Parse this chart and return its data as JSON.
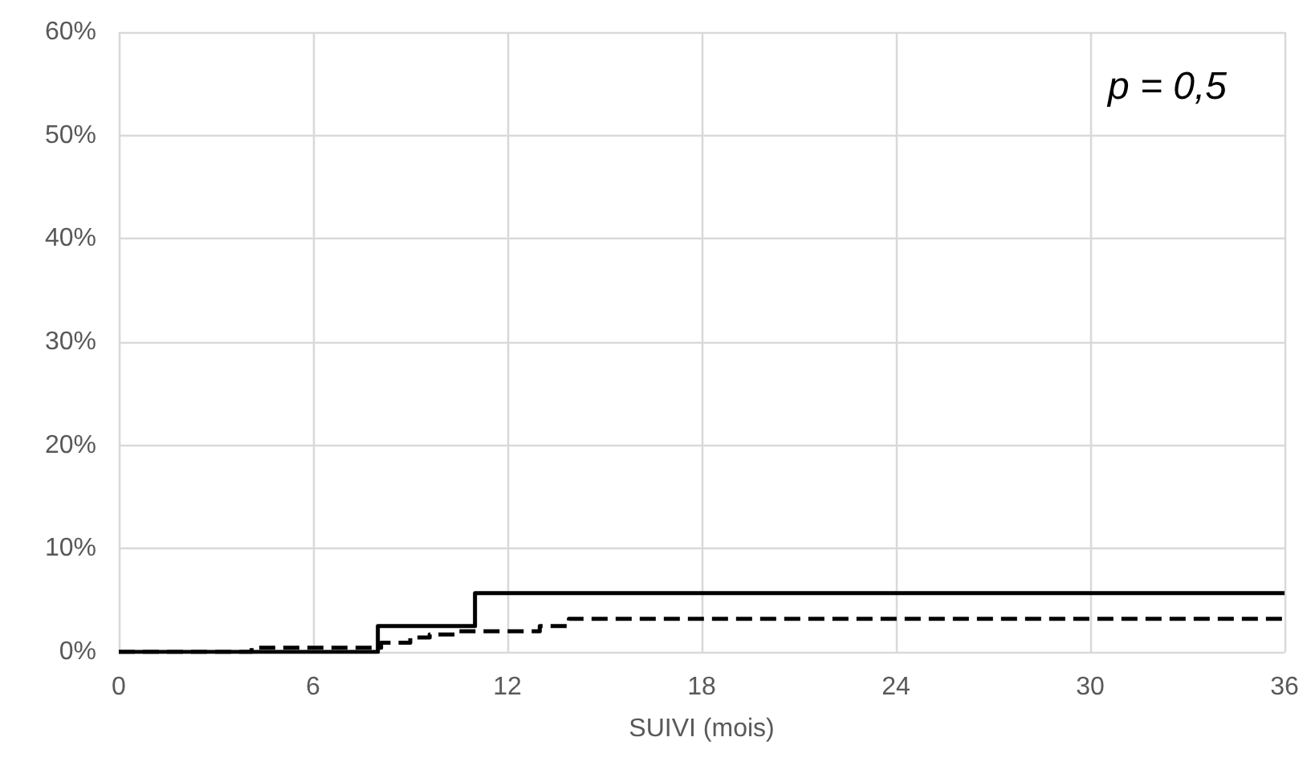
{
  "chart_data": {
    "type": "step",
    "xlabel": "SUIVI (mois)",
    "annotations": [
      "p = 0,5"
    ],
    "xlim": [
      0,
      36
    ],
    "xticks": [
      0,
      6,
      12,
      18,
      24,
      30,
      36
    ],
    "ylim": [
      0,
      60
    ],
    "yticks": [
      {
        "value": 0,
        "label": "0%"
      },
      {
        "value": 10,
        "label": "10%"
      },
      {
        "value": 20,
        "label": "20%"
      },
      {
        "value": 30,
        "label": "30%"
      },
      {
        "value": 40,
        "label": "40%"
      },
      {
        "value": 50,
        "label": "50%"
      },
      {
        "value": 60,
        "label": "60%"
      }
    ],
    "grid": true,
    "marker": "none",
    "series": [
      {
        "color": "#000000",
        "line_style": "solid",
        "x": [
          0,
          8,
          11,
          36
        ],
        "values": [
          0,
          2.5,
          5.7,
          5.7
        ]
      },
      {
        "color": "#000000",
        "line_style": "dashed",
        "x": [
          0,
          4.1,
          8.1,
          9,
          9.6,
          10.4,
          13,
          13.9,
          36
        ],
        "values": [
          0,
          0.4,
          0.9,
          1.4,
          1.7,
          2.0,
          2.5,
          3.2,
          3.2
        ]
      }
    ]
  }
}
